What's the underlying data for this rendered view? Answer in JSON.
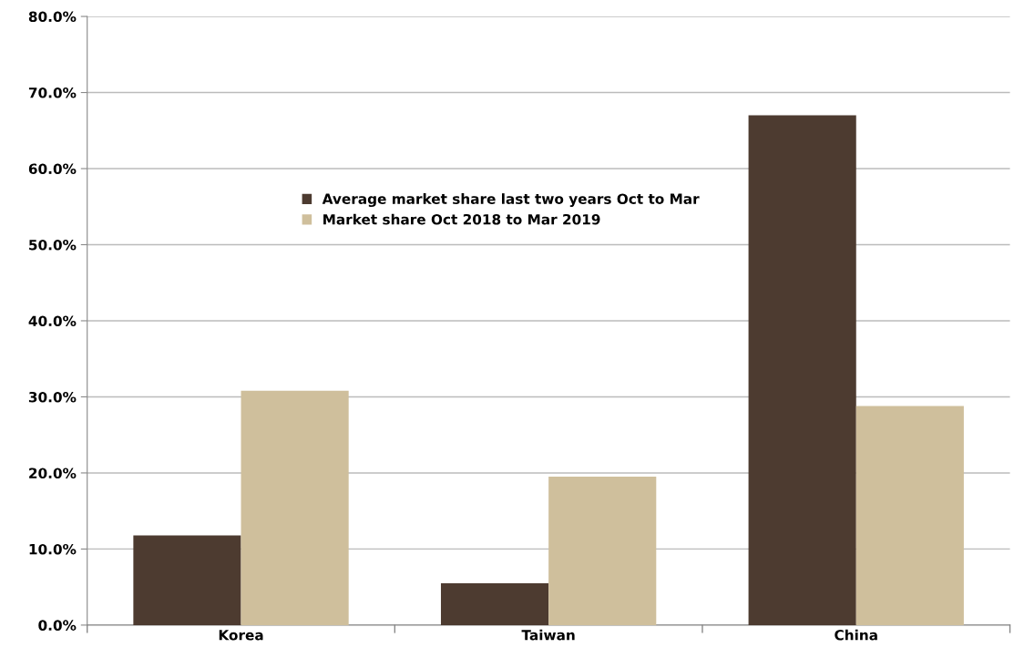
{
  "chart_data": {
    "type": "bar",
    "categories": [
      "Korea",
      "Taiwan",
      "China"
    ],
    "series": [
      {
        "name": "Average market share last two years Oct to Mar",
        "color": "#4d3b30",
        "values": [
          11.8,
          5.5,
          67.0
        ]
      },
      {
        "name": "Market share Oct 2018 to Mar 2019",
        "color": "#cfbf9c",
        "values": [
          30.8,
          19.5,
          28.8
        ]
      }
    ],
    "ylim": [
      0,
      80
    ],
    "yticks": [
      {
        "value": 0,
        "label": "0.0%"
      },
      {
        "value": 10,
        "label": "10.0%"
      },
      {
        "value": 20,
        "label": "20.0%"
      },
      {
        "value": 30,
        "label": "30.0%"
      },
      {
        "value": 40,
        "label": "40.0%"
      },
      {
        "value": 50,
        "label": "50.0%"
      },
      {
        "value": 60,
        "label": "60.0%"
      },
      {
        "value": 70,
        "label": "70.0%"
      },
      {
        "value": 80,
        "label": "80.0%"
      }
    ],
    "grid": "y",
    "legend": "top left"
  }
}
